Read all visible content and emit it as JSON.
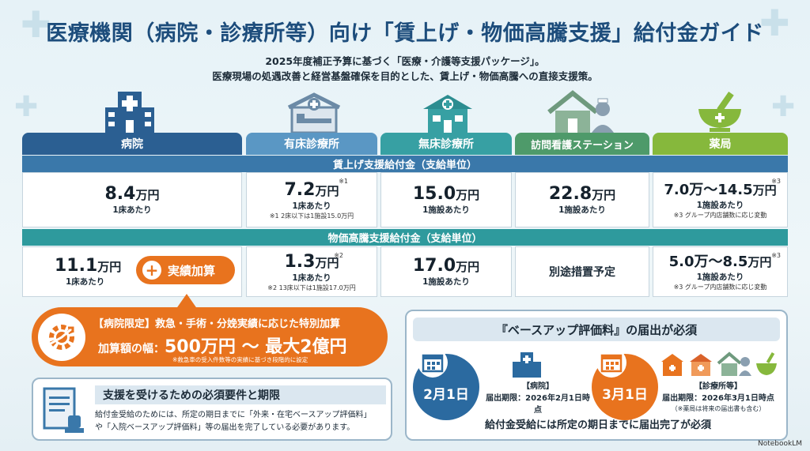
{
  "title": "医療機関（病院・診療所等）向け「賃上げ・物価高騰支援」給付金ガイド",
  "subtitle_line1": "2025年度補正予算に基づく「医療・介護等支援パッケージ」。",
  "subtitle_line2": "医療現場の処遇改善と経営基盤確保を目的とした、賃上げ・物価高騰への直接支援策。",
  "columns": [
    {
      "label": "病院",
      "color": "#2b5f92",
      "icon": "hospital-building-icon"
    },
    {
      "label": "有床診療所",
      "color": "#5a97c4",
      "icon": "hospital-bed-icon"
    },
    {
      "label": "無床診療所",
      "color": "#37a0a3",
      "icon": "clinic-icon"
    },
    {
      "label": "訪問看護ステーション",
      "color": "#4e9a6a",
      "icon": "nurse-home-icon"
    },
    {
      "label": "薬局",
      "color": "#86b83c",
      "icon": "mortar-pestle-icon"
    }
  ],
  "wage": {
    "section_label": "賃上げ支援給付金（支給単位）",
    "cells": [
      {
        "amount": "8.4",
        "unit": "万円",
        "per": "1床あたり",
        "note": "",
        "mark": ""
      },
      {
        "amount": "7.2",
        "unit": "万円",
        "per": "1床あたり",
        "note": "※1 2床以下は1施設15.0万円",
        "mark": "※1"
      },
      {
        "amount": "15.0",
        "unit": "万円",
        "per": "1施設あたり",
        "note": "",
        "mark": ""
      },
      {
        "amount": "22.8",
        "unit": "万円",
        "per": "1施設あたり",
        "note": "",
        "mark": ""
      },
      {
        "amount": "7.0万～14.5",
        "unit": "万円",
        "per": "1施設あたり",
        "note": "※3 グループ内店舗数に応じ変動",
        "mark": "※3"
      }
    ]
  },
  "price": {
    "section_label": "物価高騰支援給付金（支給単位）",
    "cells": [
      {
        "amount": "11.1",
        "unit": "万円",
        "per": "1床あたり",
        "note": "",
        "mark": ""
      },
      {
        "amount": "1.3",
        "unit": "万円",
        "per": "1床あたり",
        "note": "※2 13床以下は1施設17.0万円",
        "mark": "※2"
      },
      {
        "amount": "17.0",
        "unit": "万円",
        "per": "1施設あたり",
        "note": "",
        "mark": ""
      },
      {
        "amount": "",
        "unit": "",
        "per": "",
        "note": "",
        "mark": "",
        "text": "別途措置予定"
      },
      {
        "amount": "5.0万～8.5",
        "unit": "万円",
        "per": "1施設あたり",
        "note": "※3 グループ内店舗数に応じ変動",
        "mark": "※3"
      }
    ],
    "bonus_button": "実績加算"
  },
  "special": {
    "line1": "【病院限定】救急・手術・分娩実績に応じた特別加算",
    "line2_prefix": "加算額の幅：",
    "line2_amount": "500万円 ～ 最大2億円",
    "note": "※救急車の受入件数等の実績に基づき段階的に設定"
  },
  "requirements": {
    "title": "支援を受けるための必須要件と期限",
    "text1": "給付金受給のためには、所定の期日までに「外来・在宅ベースアップ評価料」",
    "text2": "や「入院ベースアップ評価料」等の届出を完了している必要があります。"
  },
  "baseup": {
    "title": "『ベースアップ評価料』の届出が必須",
    "hospital_date": "2月1日",
    "hospital_label": "【病院】",
    "hospital_deadline": "届出期限：2026年2月1日時点",
    "clinic_date": "3月1日",
    "clinic_label": "【診療所等】",
    "clinic_deadline": "届出期限：2026年3月1日時点",
    "clinic_note": "（※薬局は将来の届出書も含む）",
    "footer": "給付金受給には所定の期日までに届出完了が必須",
    "colors": {
      "hospital": "#2b6aa0",
      "clinic": "#e8731e"
    }
  },
  "brand": "NotebookLM"
}
